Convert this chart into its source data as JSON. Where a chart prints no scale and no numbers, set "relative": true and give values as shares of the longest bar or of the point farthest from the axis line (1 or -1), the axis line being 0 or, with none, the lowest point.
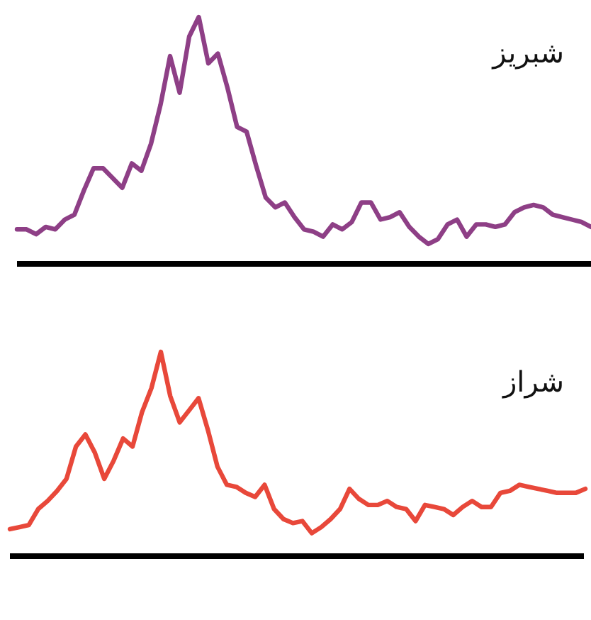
{
  "chart_data": [
    {
      "type": "line",
      "title": "شبریز",
      "relative": true,
      "categories": [
        null,
        null,
        null,
        null,
        null,
        null,
        null,
        null,
        null,
        null,
        null,
        null,
        null,
        null,
        null,
        null,
        null,
        null,
        null,
        null,
        null,
        null,
        null,
        null,
        null,
        null,
        null,
        null,
        null,
        null,
        null,
        null,
        null,
        null,
        null,
        null,
        null,
        null,
        null,
        null,
        null,
        null,
        null,
        null,
        null,
        null,
        null,
        null,
        null,
        null,
        null,
        null,
        null,
        null,
        null,
        null,
        null,
        null,
        null,
        null,
        null
      ],
      "series": [
        {
          "color": "#8e3f86",
          "values": [
            0.13,
            0.13,
            0.11,
            0.14,
            0.13,
            0.17,
            0.19,
            0.29,
            0.38,
            0.38,
            0.34,
            0.3,
            0.4,
            0.37,
            0.48,
            0.64,
            0.84,
            0.69,
            0.92,
            1,
            0.81,
            0.85,
            0.71,
            0.55,
            0.53,
            0.39,
            0.26,
            0.22,
            0.24,
            0.18,
            0.13,
            0.12,
            0.1,
            0.15,
            0.13,
            0.16,
            0.24,
            0.24,
            0.17,
            0.18,
            0.2,
            0.14,
            0.1,
            0.07,
            0.09,
            0.15,
            0.17,
            0.1,
            0.15,
            0.15,
            0.14,
            0.15,
            0.2,
            0.22,
            0.23,
            0.22,
            0.19,
            0.18,
            0.17,
            0.16,
            0.14
          ]
        }
      ]
    },
    {
      "type": "line",
      "title": "شراز",
      "relative": true,
      "categories": [
        null,
        null,
        null,
        null,
        null,
        null,
        null,
        null,
        null,
        null,
        null,
        null,
        null,
        null,
        null,
        null,
        null,
        null,
        null,
        null,
        null,
        null,
        null,
        null,
        null,
        null,
        null,
        null,
        null,
        null,
        null,
        null,
        null,
        null,
        null,
        null,
        null,
        null,
        null,
        null,
        null,
        null,
        null,
        null,
        null,
        null,
        null,
        null,
        null,
        null,
        null,
        null,
        null,
        null,
        null,
        null,
        null,
        null,
        null,
        null,
        null,
        null
      ],
      "series": [
        {
          "color": "#e8483a",
          "values": [
            0.12,
            0.13,
            0.14,
            0.22,
            0.26,
            0.31,
            0.37,
            0.53,
            0.59,
            0.5,
            0.37,
            0.46,
            0.57,
            0.53,
            0.7,
            0.82,
            1,
            0.78,
            0.65,
            0.71,
            0.77,
            0.61,
            0.43,
            0.34,
            0.33,
            0.3,
            0.28,
            0.34,
            0.22,
            0.17,
            0.15,
            0.16,
            0.1,
            0.13,
            0.17,
            0.22,
            0.32,
            0.27,
            0.24,
            0.24,
            0.26,
            0.23,
            0.22,
            0.16,
            0.24,
            0.23,
            0.22,
            0.19,
            0.23,
            0.26,
            0.23,
            0.23,
            0.3,
            0.31,
            0.34,
            0.33,
            0.32,
            0.31,
            0.3,
            0.3,
            0.3,
            0.32
          ]
        }
      ]
    }
  ]
}
